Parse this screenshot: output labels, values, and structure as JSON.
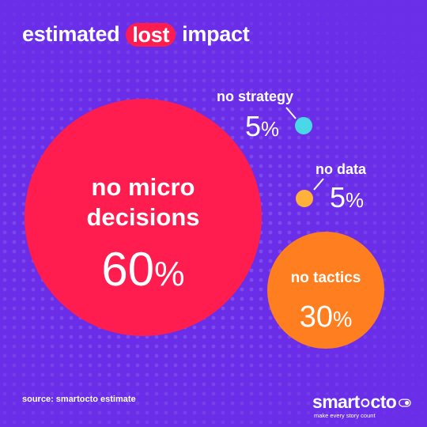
{
  "title": {
    "before": "estimated",
    "highlight": "lost",
    "after": "impact"
  },
  "segments": [
    {
      "label_line1": "no micro",
      "label_line2": "decisions",
      "value": "60",
      "unit": "%",
      "color": "#ff1c4e"
    },
    {
      "label": "no tactics",
      "value": "30",
      "unit": "%",
      "color": "#ff7e1f"
    },
    {
      "label": "no strategy",
      "value": "5",
      "unit": "%",
      "color": "#4ad7e8"
    },
    {
      "label": "no data",
      "value": "5",
      "unit": "%",
      "color": "#ffb13a"
    }
  ],
  "source": "source: smartocto estimate",
  "logo": {
    "word_start": "smart",
    "word_end": "cto",
    "tagline": "make every story count"
  },
  "colors": {
    "background": "#6a2ee8",
    "highlight": "#ff1c4e",
    "text": "#ffffff"
  }
}
